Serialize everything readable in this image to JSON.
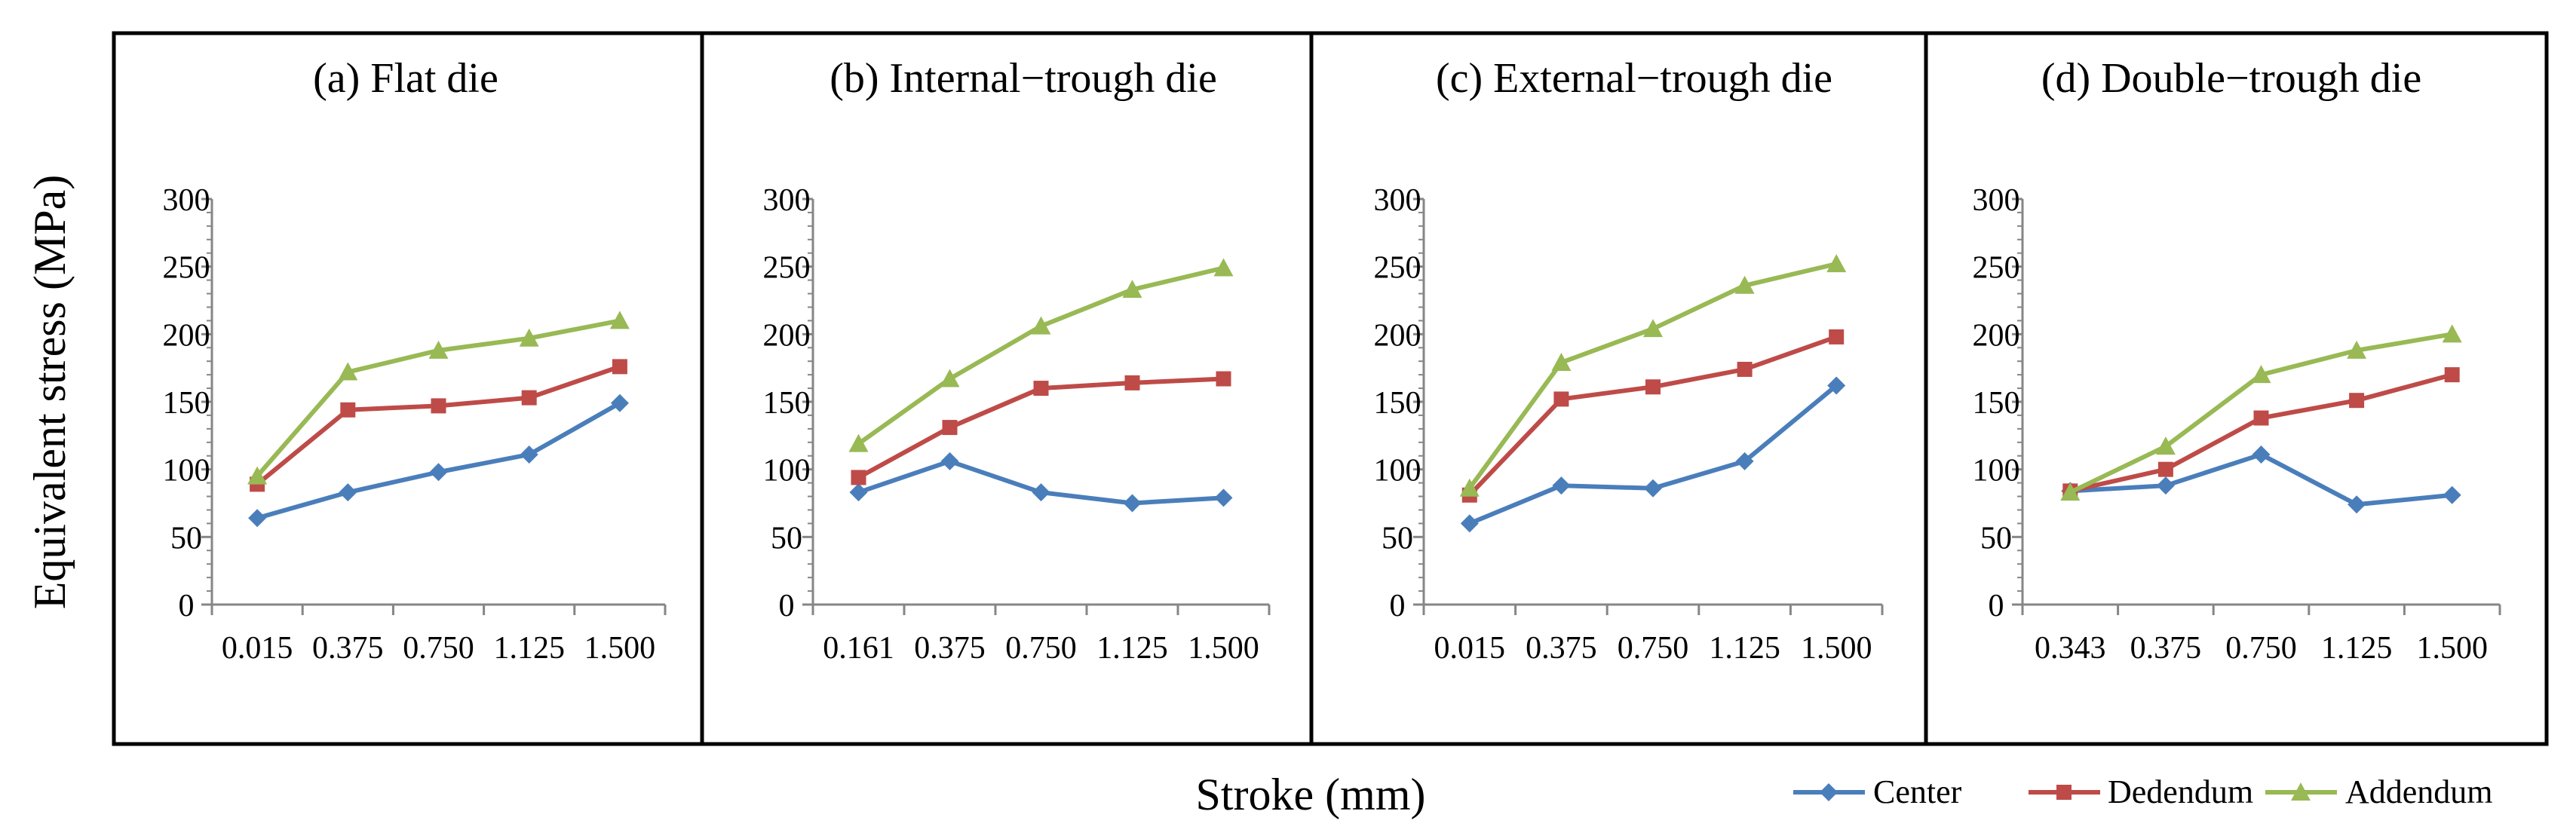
{
  "chart_data": {
    "type": "line",
    "ylabel": "Equivalent stress (MPa)",
    "xlabel": "Stroke (mm)",
    "ylim": [
      0,
      300
    ],
    "yticks": [
      "0",
      "50",
      "100",
      "150",
      "200",
      "250",
      "300"
    ],
    "legend_position": "bottom-right",
    "series_styles": [
      {
        "name": "Center",
        "color": "#4a7ebb",
        "marker": "diamond"
      },
      {
        "name": "Dedendum",
        "color": "#be4b48",
        "marker": "square"
      },
      {
        "name": "Addendum",
        "color": "#98b954",
        "marker": "triangle"
      }
    ],
    "panels": [
      {
        "title": "(a) Flat die",
        "categories": [
          "0.015",
          "0.375",
          "0.750",
          "1.125",
          "1.500"
        ],
        "series": [
          {
            "name": "Center",
            "values": [
              64,
              83,
              98,
              111,
              149
            ]
          },
          {
            "name": "Dedendum",
            "values": [
              89,
              144,
              147,
              153,
              176
            ]
          },
          {
            "name": "Addendum",
            "values": [
              95,
              172,
              188,
              197,
              210
            ]
          }
        ]
      },
      {
        "title": "(b) Internal−trough die",
        "categories": [
          "0.161",
          "0.375",
          "0.750",
          "1.125",
          "1.500"
        ],
        "series": [
          {
            "name": "Center",
            "values": [
              83,
              106,
              83,
              75,
              79
            ]
          },
          {
            "name": "Dedendum",
            "values": [
              94,
              131,
              160,
              164,
              167
            ]
          },
          {
            "name": "Addendum",
            "values": [
              119,
              167,
              206,
              233,
              249
            ]
          }
        ]
      },
      {
        "title": "(c) External−trough die",
        "categories": [
          "0.015",
          "0.375",
          "0.750",
          "1.125",
          "1.500"
        ],
        "series": [
          {
            "name": "Center",
            "values": [
              60,
              88,
              86,
              106,
              162
            ]
          },
          {
            "name": "Dedendum",
            "values": [
              81,
              152,
              161,
              174,
              198
            ]
          },
          {
            "name": "Addendum",
            "values": [
              86,
              179,
              204,
              236,
              252
            ]
          }
        ]
      },
      {
        "title": "(d) Double−trough die",
        "categories": [
          "0.343",
          "0.375",
          "0.750",
          "1.125",
          "1.500"
        ],
        "series": [
          {
            "name": "Center",
            "values": [
              84,
              88,
              111,
              74,
              81
            ]
          },
          {
            "name": "Dedendum",
            "values": [
              84,
              100,
              138,
              151,
              170
            ]
          },
          {
            "name": "Addendum",
            "values": [
              83,
              117,
              170,
              188,
              200
            ]
          }
        ]
      }
    ]
  }
}
